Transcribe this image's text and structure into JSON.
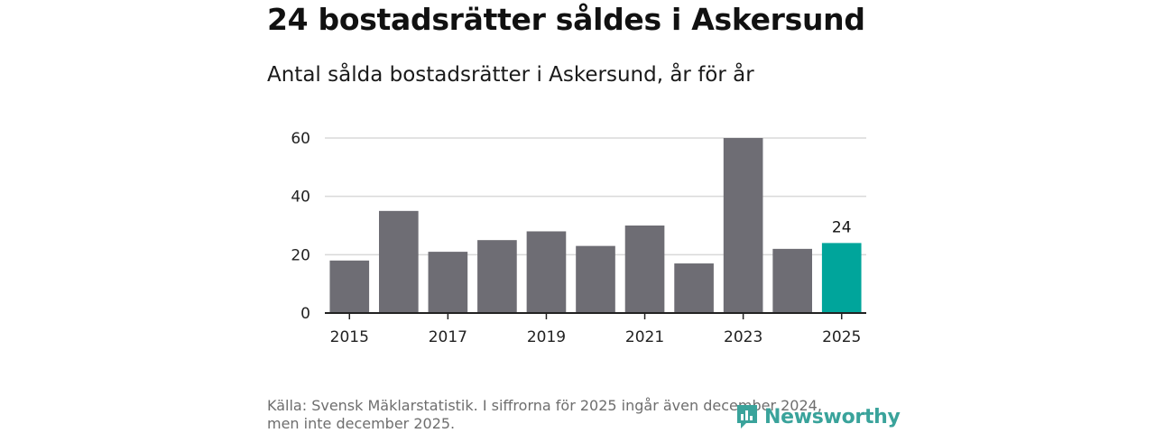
{
  "header": {
    "title": "24 bostadsrätter såldes i Askersund",
    "subtitle": "Antal sålda bostadsrätter i Askersund, år för år"
  },
  "footer": {
    "source_line1": "Källa: Svensk Mäklarstatistik. I siffrorna för 2025 ingår även december 2024,",
    "source_line2": "men inte december 2025.",
    "logo_text": "Newsworthy"
  },
  "colors": {
    "bar": "#6e6d74",
    "highlight": "#00a59b",
    "grid": "#d9d9d9",
    "axis": "#222222",
    "logo": "#3aa39b"
  },
  "chart_data": {
    "type": "bar",
    "title": "24 bostadsrätter såldes i Askersund",
    "subtitle": "Antal sålda bostadsrätter i Askersund, år för år",
    "categories": [
      2015,
      2016,
      2017,
      2018,
      2019,
      2020,
      2021,
      2022,
      2023,
      2024,
      2025
    ],
    "values": [
      18,
      35,
      21,
      25,
      28,
      23,
      30,
      17,
      60,
      22,
      24
    ],
    "highlight_index": 10,
    "data_labels": [
      {
        "index": 10,
        "text": "24"
      }
    ],
    "x_tick_labels": [
      "2015",
      "2017",
      "2019",
      "2021",
      "2023",
      "2025"
    ],
    "y_ticks": [
      0,
      20,
      40,
      60
    ],
    "ylim": [
      0,
      60
    ],
    "xlabel": "",
    "ylabel": "",
    "grid": true,
    "legend": "none"
  }
}
